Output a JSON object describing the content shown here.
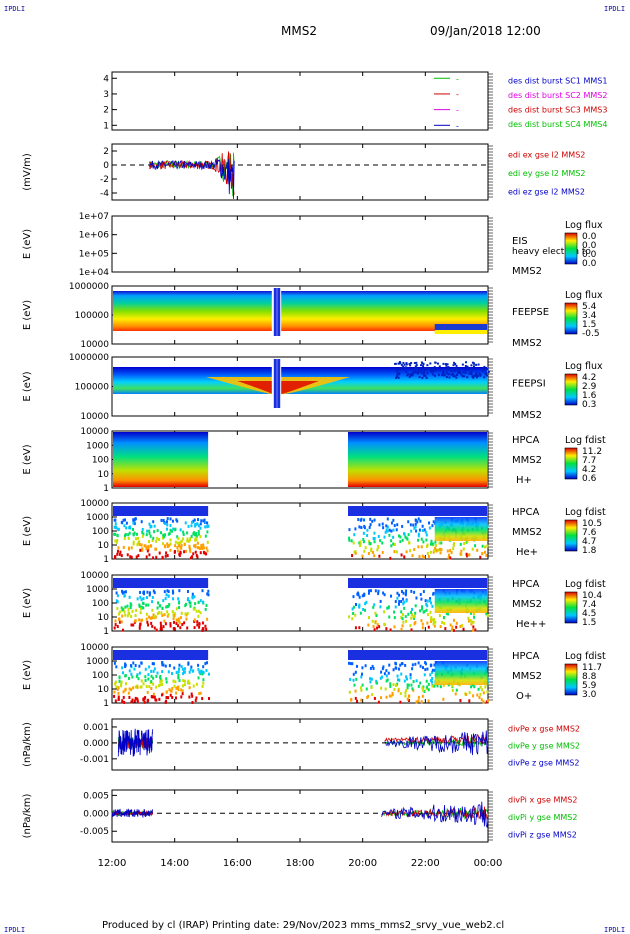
{
  "header": {
    "logo_left": "IPDLI",
    "logo_right": "IPDLI",
    "title": "MMS2",
    "datetime": "09/Jan/2018 12:00"
  },
  "footer": {
    "logo_left": "IPDLI",
    "logo_right": "IPDLI",
    "text": "Produced by cl (IRAP)   Printing date: 29/Nov/2023   mms_mms2_srvy_vue_web2.cl"
  },
  "colors": {
    "sc1": "#0000c8",
    "sc2": "#e000e0",
    "sc3": "#d00000",
    "sc4": "#00c000",
    "x_component": "#d00000",
    "y_component": "#00c000",
    "z_component": "#0000c8"
  },
  "chart_data": [
    {
      "type": "line",
      "panel": "des-dist-burst",
      "yticks": [
        "1",
        "2",
        "3",
        "4"
      ],
      "ylim": [
        0.7,
        4.4
      ],
      "legend": [
        {
          "label": "des dist burst SC1 MMS1",
          "color": "#0000c8"
        },
        {
          "label": "des dist burst SC2 MMS2",
          "color": "#e000e0"
        },
        {
          "label": "des dist burst SC3 MMS3",
          "color": "#d00000"
        },
        {
          "label": "des dist burst SC4 MMS4",
          "color": "#00c000"
        }
      ],
      "marker_legend": [
        {
          "value": 4,
          "color": "#00c000",
          "mark": "-"
        },
        {
          "value": 3,
          "color": "#d00000",
          "mark": "-"
        },
        {
          "value": 2,
          "color": "#e000e0",
          "mark": "-"
        },
        {
          "value": 1,
          "color": "#0000c8",
          "mark": "-"
        }
      ]
    },
    {
      "type": "line",
      "panel": "edi-e-gse",
      "ylabel": "(mV/m)",
      "yticks": [
        "-4",
        "-2",
        "0",
        "2"
      ],
      "ylim": [
        -5,
        3
      ],
      "zero_line": true,
      "legend": [
        {
          "label": "edi ex gse l2 MMS2",
          "color": "#d00000"
        },
        {
          "label": "edi ey gse l2 MMS2",
          "color": "#00c000"
        },
        {
          "label": "edi ez gse l2 MMS2",
          "color": "#0000c8"
        }
      ],
      "data_span_hours": [
        13.2,
        15.9
      ]
    },
    {
      "type": "heatmap",
      "panel": "eis",
      "ylabel": "E (eV)",
      "yscale": "log",
      "yticks": [
        "1e+04",
        "1e+05",
        "1e+06",
        "1e+07"
      ],
      "labels": [
        "EIS",
        "heavy electron to",
        "MMS2"
      ],
      "colorbar": {
        "title": "Log flux",
        "ticks": [
          "0.0",
          "0.0",
          "0.0",
          "0.0"
        ]
      },
      "empty": true
    },
    {
      "type": "heatmap",
      "panel": "feeps-electron",
      "ylabel": "E (eV)",
      "yscale": "log",
      "yticks": [
        "10000",
        "100000",
        "1000000"
      ],
      "labels": [
        "FEEPSE",
        "MMS2"
      ],
      "colorbar": {
        "title": "Log flux",
        "ticks": [
          "5.4",
          "3.4",
          "1.5",
          "-0.5"
        ]
      },
      "data_spans_hours": [
        [
          12.0,
          24.0
        ]
      ],
      "gap_hours": [
        17.1,
        17.4
      ]
    },
    {
      "type": "heatmap",
      "panel": "feeps-ion",
      "ylabel": "E (eV)",
      "yscale": "log",
      "yticks": [
        "10000",
        "100000",
        "1000000"
      ],
      "labels": [
        "FEEPSI",
        "MMS2"
      ],
      "colorbar": {
        "title": "Log flux",
        "ticks": [
          "4.2",
          "2.9",
          "1.6",
          "0.3"
        ]
      },
      "data_spans_hours": [
        [
          12.0,
          24.0
        ]
      ],
      "gap_hours": [
        17.1,
        17.4
      ]
    },
    {
      "type": "heatmap",
      "panel": "hpca-h",
      "ylabel": "E (eV)",
      "yscale": "log",
      "yticks": [
        "1",
        "10",
        "100",
        "1000",
        "10000"
      ],
      "labels": [
        "HPCA",
        "MMS2",
        "H+"
      ],
      "colorbar": {
        "title": "Log fdist",
        "ticks": [
          "11.2",
          "7.7",
          "4.2",
          "0.6"
        ]
      },
      "data_spans_hours": [
        [
          12.0,
          15.1
        ],
        [
          19.5,
          24.0
        ]
      ]
    },
    {
      "type": "heatmap",
      "panel": "hpca-he",
      "ylabel": "E (eV)",
      "yscale": "log",
      "yticks": [
        "1",
        "10",
        "100",
        "1000",
        "10000"
      ],
      "labels": [
        "HPCA",
        "MMS2",
        "He+"
      ],
      "colorbar": {
        "title": "Log fdist",
        "ticks": [
          "10.5",
          "7.6",
          "4.7",
          "1.8"
        ]
      },
      "data_spans_hours": [
        [
          12.0,
          15.1
        ],
        [
          19.5,
          24.0
        ]
      ]
    },
    {
      "type": "heatmap",
      "panel": "hpca-hepp",
      "ylabel": "E (eV)",
      "yscale": "log",
      "yticks": [
        "1",
        "10",
        "100",
        "1000",
        "10000"
      ],
      "labels": [
        "HPCA",
        "MMS2",
        "He++"
      ],
      "colorbar": {
        "title": "Log fdist",
        "ticks": [
          "10.4",
          "7.4",
          "4.5",
          "1.5"
        ]
      },
      "data_spans_hours": [
        [
          12.0,
          15.1
        ],
        [
          19.5,
          24.0
        ]
      ]
    },
    {
      "type": "heatmap",
      "panel": "hpca-o",
      "ylabel": "E (eV)",
      "yscale": "log",
      "yticks": [
        "1",
        "10",
        "100",
        "1000",
        "10000"
      ],
      "labels": [
        "HPCA",
        "MMS2",
        "O+"
      ],
      "colorbar": {
        "title": "Log fdist",
        "ticks": [
          "11.7",
          "8.8",
          "5.9",
          "3.0"
        ]
      },
      "data_spans_hours": [
        [
          12.0,
          15.1
        ],
        [
          19.5,
          24.0
        ]
      ]
    },
    {
      "type": "line",
      "panel": "div-pe",
      "ylabel": "(nPa/km)",
      "yticks": [
        "-0.001",
        "0.000",
        "0.001"
      ],
      "ylim": [
        -0.0017,
        0.0015
      ],
      "zero_line": true,
      "legend": [
        {
          "label": "divPe x gse MMS2",
          "color": "#d00000"
        },
        {
          "label": "divPe y gse MMS2",
          "color": "#00c000"
        },
        {
          "label": "divPe z gse MMS2",
          "color": "#0000c8"
        }
      ],
      "data_spans_hours": [
        [
          12.2,
          13.3
        ],
        [
          20.7,
          24.0
        ]
      ]
    },
    {
      "type": "line",
      "panel": "div-pi",
      "ylabel": "(nPa/km)",
      "yticks": [
        "-0.005",
        "0.000",
        "0.005"
      ],
      "ylim": [
        -0.008,
        0.0065
      ],
      "zero_line": true,
      "legend": [
        {
          "label": "divPi x gse MMS2",
          "color": "#d00000"
        },
        {
          "label": "divPi y gse MMS2",
          "color": "#00c000"
        },
        {
          "label": "divPi z gse MMS2",
          "color": "#0000c8"
        }
      ],
      "data_spans_hours": [
        [
          12.0,
          13.3
        ],
        [
          20.6,
          24.0
        ]
      ]
    }
  ],
  "xaxis": {
    "range_hours": [
      12,
      24
    ],
    "tick_labels": [
      "12:00",
      "14:00",
      "16:00",
      "18:00",
      "20:00",
      "22:00",
      "00:00"
    ],
    "tick_hours": [
      12,
      14,
      16,
      18,
      20,
      22,
      24
    ]
  }
}
